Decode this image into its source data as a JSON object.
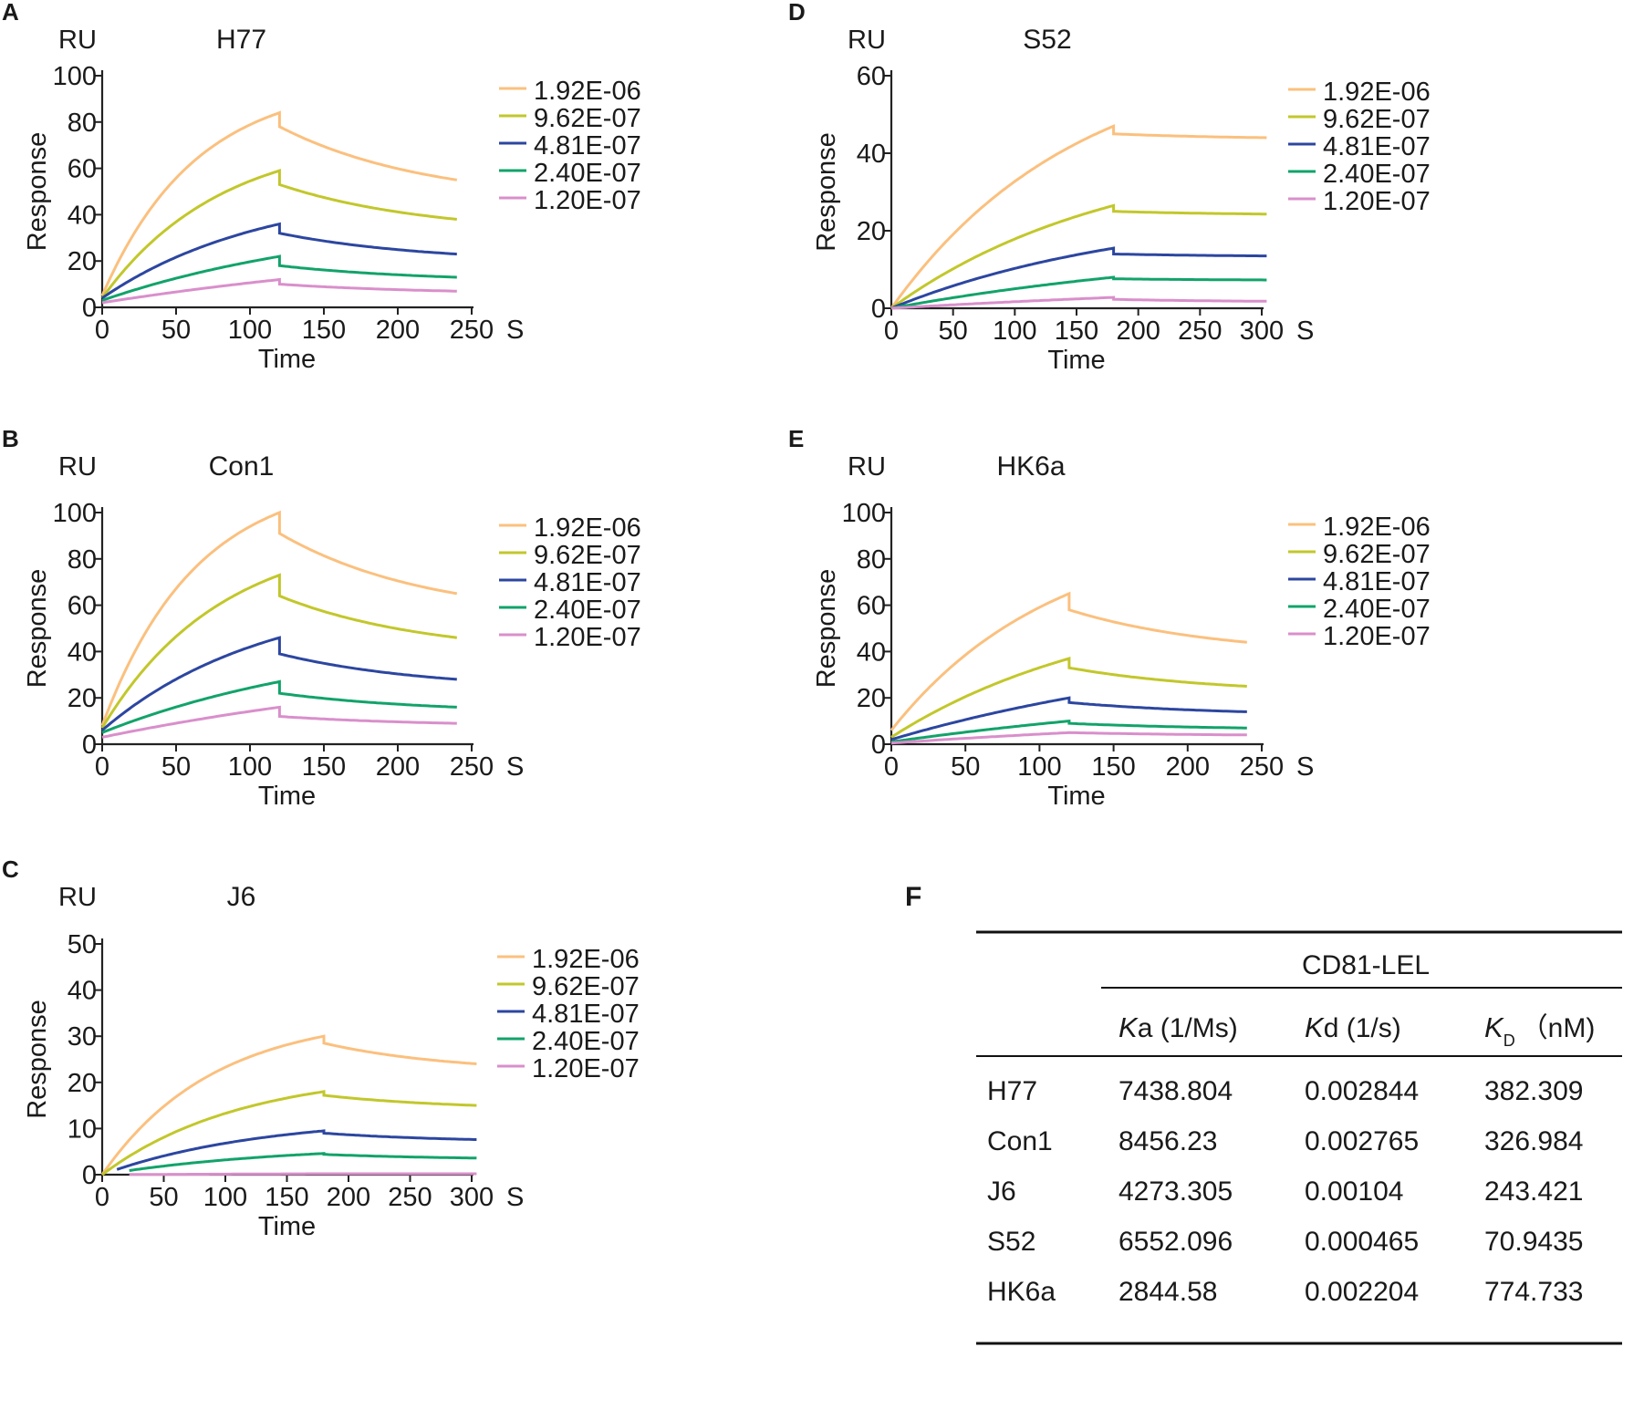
{
  "figure": {
    "legend_entries": [
      "1.92E-06",
      "9.62E-07",
      "4.81E-07",
      "2.40E-07",
      "1.20E-07"
    ],
    "series_colors": [
      "#fbc07e",
      "#c2c72b",
      "#2c46a0",
      "#12a36a",
      "#d98fcb"
    ],
    "common": {
      "ylabel": "Response",
      "xlabel": "Time",
      "yunit": "RU",
      "xunit": "S"
    }
  },
  "chart_data": [
    {
      "panel": "A",
      "type": "line",
      "title": "H77",
      "xlabel": "Time",
      "ylabel": "Response",
      "yunit": "RU",
      "xunit": "S",
      "xlim": [
        0,
        250
      ],
      "ylim": [
        0,
        100
      ],
      "xticks": [
        0,
        50,
        100,
        150,
        200,
        250
      ],
      "yticks": [
        0,
        20,
        40,
        60,
        80,
        100
      ],
      "assoc_end": 120,
      "x_end": 240,
      "series": [
        {
          "name": "1.92E-06",
          "start": 5,
          "peak": 84,
          "after_drop": 78,
          "end": 55,
          "shape": 1.9
        },
        {
          "name": "9.62E-07",
          "start": 4,
          "peak": 59,
          "after_drop": 53,
          "end": 38,
          "shape": 1.5
        },
        {
          "name": "4.81E-07",
          "start": 4,
          "peak": 36,
          "after_drop": 32,
          "end": 23,
          "shape": 1.1
        },
        {
          "name": "2.40E-07",
          "start": 3,
          "peak": 22,
          "after_drop": 18,
          "end": 13,
          "shape": 0.7
        },
        {
          "name": "1.20E-07",
          "start": 2,
          "peak": 12,
          "after_drop": 10,
          "end": 7,
          "shape": 0.4
        }
      ]
    },
    {
      "panel": "B",
      "type": "line",
      "title": "Con1",
      "xlabel": "Time",
      "ylabel": "Response",
      "yunit": "RU",
      "xunit": "S",
      "xlim": [
        0,
        250
      ],
      "ylim": [
        0,
        100
      ],
      "xticks": [
        0,
        50,
        100,
        150,
        200,
        250
      ],
      "yticks": [
        0,
        20,
        40,
        60,
        80,
        100
      ],
      "assoc_end": 120,
      "x_end": 240,
      "series": [
        {
          "name": "1.92E-06",
          "start": 8,
          "peak": 100,
          "after_drop": 91,
          "end": 65,
          "shape": 1.9
        },
        {
          "name": "9.62E-07",
          "start": 7,
          "peak": 73,
          "after_drop": 64,
          "end": 46,
          "shape": 1.5
        },
        {
          "name": "4.81E-07",
          "start": 6,
          "peak": 46,
          "after_drop": 39,
          "end": 28,
          "shape": 1.1
        },
        {
          "name": "2.40E-07",
          "start": 5,
          "peak": 27,
          "after_drop": 22,
          "end": 16,
          "shape": 0.7
        },
        {
          "name": "1.20E-07",
          "start": 3,
          "peak": 16,
          "after_drop": 12,
          "end": 9,
          "shape": 0.4
        }
      ]
    },
    {
      "panel": "C",
      "type": "line",
      "title": "J6",
      "xlabel": "Time",
      "ylabel": "Response",
      "yunit": "RU",
      "xunit": "S",
      "xlim": [
        0,
        300
      ],
      "ylim": [
        0,
        50
      ],
      "xticks": [
        0,
        50,
        100,
        150,
        200,
        250,
        300
      ],
      "yticks": [
        0,
        10,
        20,
        30,
        40,
        50
      ],
      "assoc_end": 180,
      "x_end": 305,
      "series": [
        {
          "name": "1.92E-06",
          "start": 0,
          "peak": 30,
          "after_drop": 28.5,
          "end": 24,
          "shape": 2.0
        },
        {
          "name": "9.62E-07",
          "start": 0,
          "peak": 18,
          "after_drop": 17.2,
          "end": 15,
          "shape": 1.6
        },
        {
          "name": "4.81E-07",
          "start": 0,
          "peak": 9.5,
          "after_drop": 9.0,
          "end": 7.6,
          "shape": 1.4
        },
        {
          "name": "2.40E-07",
          "start": 0,
          "peak": 4.6,
          "after_drop": 4.4,
          "end": 3.6,
          "shape": 1.2
        },
        {
          "name": "1.20E-07",
          "start": 0,
          "peak": 0.2,
          "after_drop": 0.2,
          "end": 0.2,
          "shape": 0.5
        }
      ]
    },
    {
      "panel": "D",
      "type": "line",
      "title": "S52",
      "xlabel": "Time",
      "ylabel": "Response",
      "yunit": "RU",
      "xunit": "S",
      "xlim": [
        0,
        300
      ],
      "ylim": [
        0,
        60
      ],
      "xticks": [
        0,
        50,
        100,
        150,
        200,
        250,
        300
      ],
      "yticks": [
        0,
        20,
        40,
        60
      ],
      "assoc_end": 180,
      "x_end": 305,
      "series": [
        {
          "name": "1.92E-06",
          "start": 0,
          "peak": 47,
          "after_drop": 45,
          "end": 44,
          "shape": 1.2
        },
        {
          "name": "9.62E-07",
          "start": 0,
          "peak": 26.5,
          "after_drop": 25,
          "end": 24.3,
          "shape": 1.0
        },
        {
          "name": "4.81E-07",
          "start": 0,
          "peak": 15.5,
          "after_drop": 14,
          "end": 13.5,
          "shape": 0.9
        },
        {
          "name": "2.40E-07",
          "start": 0,
          "peak": 8,
          "after_drop": 7.6,
          "end": 7.3,
          "shape": 0.6
        },
        {
          "name": "1.20E-07",
          "start": 0,
          "peak": 2.8,
          "after_drop": 2.3,
          "end": 1.8,
          "shape": 0.4
        }
      ]
    },
    {
      "panel": "E",
      "type": "line",
      "title": "HK6a",
      "xlabel": "Time",
      "ylabel": "Response",
      "yunit": "RU",
      "xunit": "S",
      "xlim": [
        0,
        250
      ],
      "ylim": [
        0,
        100
      ],
      "xticks": [
        0,
        50,
        100,
        150,
        200,
        250
      ],
      "yticks": [
        0,
        20,
        40,
        60,
        80,
        100
      ],
      "assoc_end": 120,
      "x_end": 240,
      "series": [
        {
          "name": "1.92E-06",
          "start": 6,
          "peak": 65,
          "after_drop": 58,
          "end": 44,
          "shape": 1.1
        },
        {
          "name": "9.62E-07",
          "start": 3,
          "peak": 37,
          "after_drop": 33,
          "end": 25,
          "shape": 0.8
        },
        {
          "name": "4.81E-07",
          "start": 2,
          "peak": 20,
          "after_drop": 18,
          "end": 14,
          "shape": 0.5
        },
        {
          "name": "2.40E-07",
          "start": 1,
          "peak": 10,
          "after_drop": 9,
          "end": 7,
          "shape": 0.4
        },
        {
          "name": "1.20E-07",
          "start": 0.5,
          "peak": 5,
          "after_drop": 5,
          "end": 4,
          "shape": 0.3
        }
      ]
    },
    {
      "panel": "F",
      "type": "table",
      "group_header": "CD81-LEL",
      "columns": [
        {
          "italic": "K",
          "rest": "a (1/Ms)"
        },
        {
          "italic": "K",
          "rest": "d (1/s)"
        },
        {
          "italic": "K",
          "sub": "D",
          "rest": "（nM)"
        }
      ],
      "rows": [
        [
          "H77",
          "7438.804",
          "0.002844",
          "382.309"
        ],
        [
          "Con1",
          "8456.23",
          "0.002765",
          "326.984"
        ],
        [
          "J6",
          "4273.305",
          "0.00104",
          "243.421"
        ],
        [
          "S52",
          "6552.096",
          "0.000465",
          "70.9435"
        ],
        [
          "HK6a",
          "2844.58",
          "0.002204",
          "774.733"
        ]
      ]
    }
  ]
}
